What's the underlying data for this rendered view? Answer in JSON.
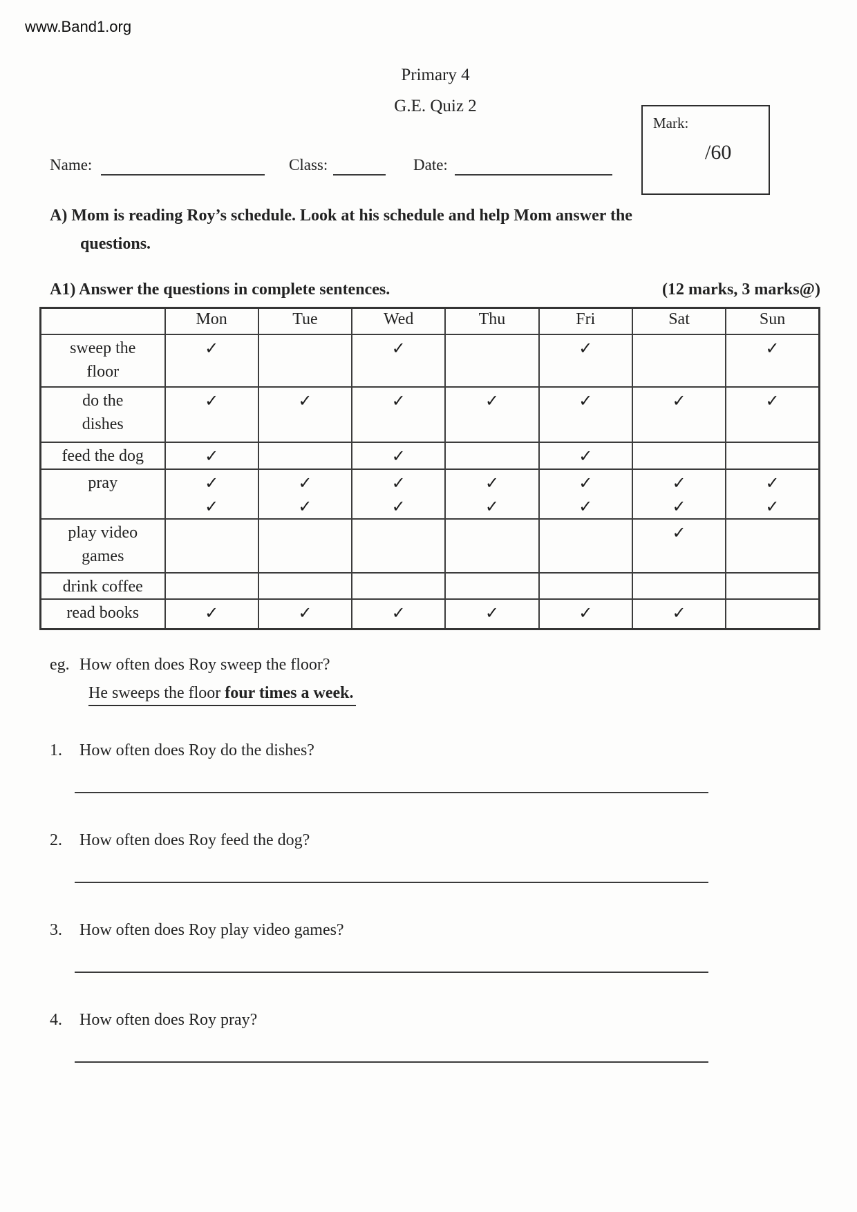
{
  "watermark": "www.Band1.org",
  "header": {
    "title_line1": "Primary 4",
    "title_line2": "G.E. Quiz 2",
    "mark_label": "Mark:",
    "mark_value": "/60",
    "name_label": "Name:",
    "class_label": "Class:",
    "date_label": "Date:"
  },
  "section_a": {
    "line1": "A) Mom is reading Roy’s schedule. Look at his schedule and help Mom answer the",
    "line2": "questions."
  },
  "section_a1": {
    "instruction": "A1) Answer the questions in complete sentences.",
    "marks": "(12 marks, 3 marks@)"
  },
  "schedule_table": {
    "check_glyph": "✓",
    "day_headers": [
      "Mon",
      "Tue",
      "Wed",
      "Thu",
      "Fri",
      "Sat",
      "Sun"
    ],
    "rows": [
      {
        "activity_lines": [
          "sweep the",
          "floor"
        ],
        "checks": [
          1,
          0,
          1,
          0,
          1,
          0,
          1
        ]
      },
      {
        "activity_lines": [
          "do the",
          "dishes"
        ],
        "checks": [
          1,
          1,
          1,
          1,
          1,
          1,
          1
        ]
      },
      {
        "activity_lines": [
          "feed the dog"
        ],
        "checks": [
          1,
          0,
          1,
          0,
          1,
          0,
          0
        ]
      },
      {
        "activity_lines": [
          "pray"
        ],
        "checks": [
          2,
          2,
          2,
          2,
          2,
          2,
          2
        ]
      },
      {
        "activity_lines": [
          "play video",
          "games"
        ],
        "checks": [
          0,
          0,
          0,
          0,
          0,
          1,
          0
        ]
      },
      {
        "activity_lines": [
          "drink coffee"
        ],
        "checks": [
          0,
          0,
          0,
          0,
          0,
          0,
          0
        ]
      },
      {
        "activity_lines": [
          "read books"
        ],
        "checks": [
          1,
          1,
          1,
          1,
          1,
          1,
          0
        ]
      }
    ]
  },
  "example": {
    "prefix": "eg.",
    "question": "How often does Roy sweep the floor?",
    "answer_regular": "He sweeps the floor ",
    "answer_bold": "four times a week."
  },
  "questions": [
    {
      "number": "1.",
      "text": "How often does Roy do the dishes?"
    },
    {
      "number": "2.",
      "text": "How often does Roy feed the dog?"
    },
    {
      "number": "3.",
      "text": "How often does Roy play video games?"
    },
    {
      "number": "4.",
      "text": "How often does Roy pray?"
    }
  ]
}
